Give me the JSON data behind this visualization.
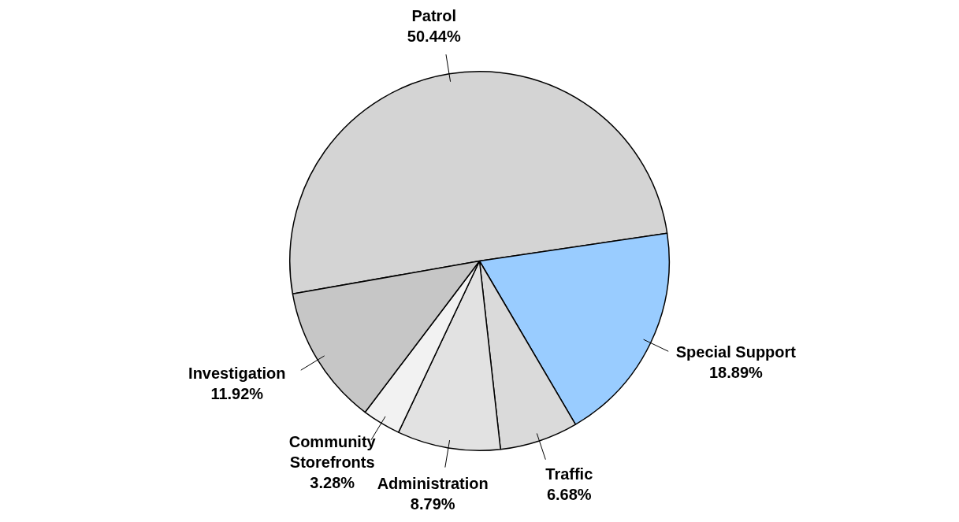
{
  "chart_data": {
    "type": "pie",
    "categories": [
      "Patrol",
      "Special Support",
      "Traffic",
      "Administration",
      "Community Storefronts",
      "Investigation"
    ],
    "values": [
      50.44,
      18.89,
      6.68,
      8.79,
      3.28,
      11.92
    ],
    "value_labels": [
      "50.44%",
      "18.89%",
      "6.68%",
      "8.79%",
      "3.28%",
      "11.92%"
    ],
    "colors": [
      "#d4d4d4",
      "#99ccff",
      "#dadada",
      "#e2e2e2",
      "#f2f2f2",
      "#c6c6c6"
    ],
    "legend": false
  }
}
